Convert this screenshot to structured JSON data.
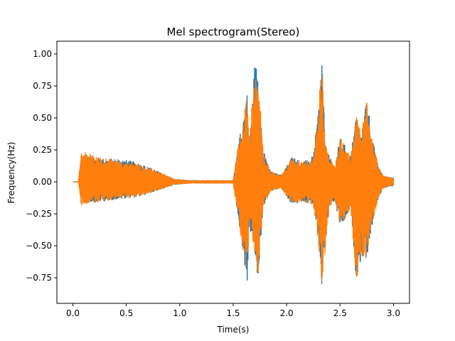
{
  "chart_data": {
    "type": "line",
    "title": "Mel spectrogram(Stereo)",
    "xlabel": "Time(s)",
    "ylabel": "Frequency(Hz)",
    "xlim": [
      -0.15,
      3.15
    ],
    "ylim": [
      -0.95,
      1.1
    ],
    "xticks": [
      0.0,
      0.5,
      1.0,
      1.5,
      2.0,
      2.5,
      3.0
    ],
    "xtick_labels": [
      "0.0",
      "0.5",
      "1.0",
      "1.5",
      "2.0",
      "2.5",
      "3.0"
    ],
    "yticks": [
      -0.75,
      -0.5,
      -0.25,
      0.0,
      0.25,
      0.5,
      0.75,
      1.0
    ],
    "ytick_labels": [
      "−0.75",
      "−0.50",
      "−0.25",
      "0.00",
      "0.25",
      "0.50",
      "0.75",
      "1.00"
    ],
    "grid": false,
    "legend": "none",
    "colors": {
      "series_1": "#1f77b4",
      "series_2": "#ff7f0e"
    },
    "envelope_note_removed": true,
    "series": [
      {
        "color": "#1f77b4",
        "envelope_t": [
          0.0,
          0.05,
          0.08,
          0.15,
          0.3,
          0.45,
          0.6,
          0.75,
          0.85,
          0.95,
          1.1,
          1.3,
          1.5,
          1.55,
          1.6,
          1.63,
          1.65,
          1.7,
          1.73,
          1.78,
          1.85,
          1.95,
          2.05,
          2.15,
          2.25,
          2.3,
          2.33,
          2.36,
          2.4,
          2.45,
          2.5,
          2.55,
          2.6,
          2.65,
          2.7,
          2.75,
          2.8,
          2.85,
          2.9,
          3.0
        ],
        "envelope_max": [
          0.0,
          0.0,
          0.22,
          0.2,
          0.18,
          0.18,
          0.15,
          0.1,
          0.06,
          0.02,
          0.01,
          0.01,
          0.01,
          0.3,
          0.55,
          0.7,
          0.3,
          0.92,
          0.92,
          0.25,
          0.08,
          0.05,
          0.2,
          0.15,
          0.2,
          0.6,
          1.01,
          0.3,
          0.2,
          0.12,
          0.35,
          0.28,
          0.2,
          0.55,
          0.35,
          0.7,
          0.35,
          0.15,
          0.05,
          0.03
        ],
        "envelope_min": [
          0.0,
          0.0,
          -0.17,
          -0.16,
          -0.15,
          -0.13,
          -0.12,
          -0.08,
          -0.05,
          -0.02,
          -0.01,
          -0.01,
          -0.01,
          -0.3,
          -0.6,
          -0.87,
          -0.35,
          -0.55,
          -0.8,
          -0.2,
          -0.07,
          -0.05,
          -0.18,
          -0.15,
          -0.18,
          -0.5,
          -0.85,
          -0.55,
          -0.2,
          -0.15,
          -0.35,
          -0.3,
          -0.2,
          -0.75,
          -0.6,
          -0.6,
          -0.35,
          -0.15,
          -0.05,
          -0.03
        ]
      },
      {
        "color": "#ff7f0e",
        "envelope_t": [
          0.0,
          0.05,
          0.08,
          0.15,
          0.3,
          0.45,
          0.6,
          0.75,
          0.85,
          0.95,
          1.1,
          1.3,
          1.5,
          1.55,
          1.6,
          1.63,
          1.65,
          1.7,
          1.73,
          1.78,
          1.85,
          1.95,
          2.05,
          2.15,
          2.25,
          2.3,
          2.33,
          2.36,
          2.4,
          2.45,
          2.5,
          2.55,
          2.6,
          2.65,
          2.7,
          2.75,
          2.8,
          2.85,
          2.9,
          3.0
        ],
        "envelope_max": [
          0.0,
          0.0,
          0.27,
          0.22,
          0.18,
          0.18,
          0.15,
          0.1,
          0.06,
          0.02,
          0.01,
          0.01,
          0.01,
          0.3,
          0.55,
          0.68,
          0.3,
          0.9,
          0.92,
          0.25,
          0.08,
          0.05,
          0.2,
          0.15,
          0.2,
          0.6,
          1.01,
          0.3,
          0.2,
          0.12,
          0.35,
          0.28,
          0.2,
          0.55,
          0.35,
          0.7,
          0.35,
          0.15,
          0.05,
          0.03
        ],
        "envelope_min": [
          0.0,
          0.0,
          -0.2,
          -0.17,
          -0.15,
          -0.13,
          -0.12,
          -0.08,
          -0.05,
          -0.02,
          -0.01,
          -0.01,
          -0.01,
          -0.3,
          -0.6,
          -0.8,
          -0.35,
          -0.55,
          -0.78,
          -0.2,
          -0.07,
          -0.05,
          -0.18,
          -0.15,
          -0.18,
          -0.5,
          -0.8,
          -0.55,
          -0.2,
          -0.15,
          -0.35,
          -0.3,
          -0.2,
          -0.82,
          -0.6,
          -0.6,
          -0.35,
          -0.15,
          -0.05,
          -0.03
        ]
      }
    ]
  }
}
